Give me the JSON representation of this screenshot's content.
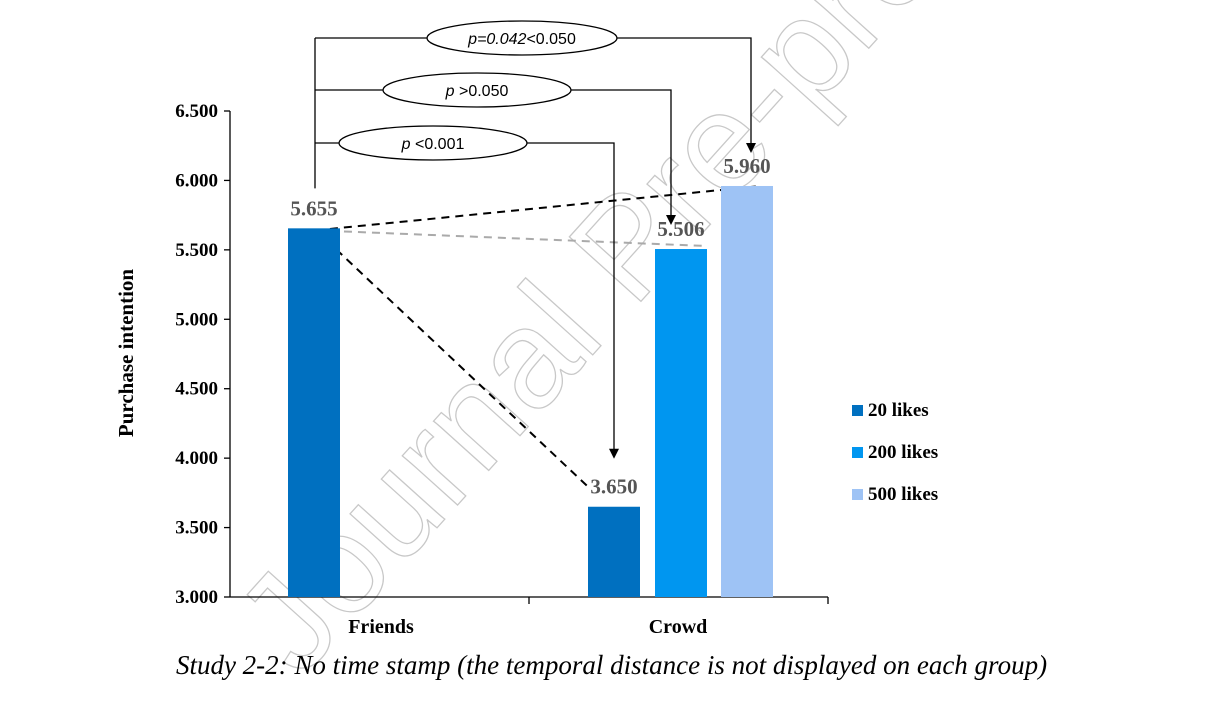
{
  "chart_data": {
    "type": "bar",
    "ylabel": "Purchase intention",
    "ylim": [
      3.0,
      6.5
    ],
    "yticks": [
      "3.000",
      "3.500",
      "4.000",
      "4.500",
      "5.000",
      "5.500",
      "6.000",
      "6.500"
    ],
    "groups": [
      "Friends",
      "Crowd"
    ],
    "bars": [
      {
        "group": "Friends",
        "series": "20 likes",
        "value": 5.655,
        "label": "5.655"
      },
      {
        "group": "Crowd",
        "series": "20 likes",
        "value": 3.65,
        "label": "3.650"
      },
      {
        "group": "Crowd",
        "series": "200 likes",
        "value": 5.506,
        "label": "5.506"
      },
      {
        "group": "Crowd",
        "series": "500 likes",
        "value": 5.96,
        "label": "5.960"
      }
    ],
    "series": [
      {
        "name": "20 likes",
        "color": "#0070c0"
      },
      {
        "name": "200 likes",
        "color": "#0096f0"
      },
      {
        "name": "500 likes",
        "color": "#9ec3f5"
      }
    ],
    "legend_position": "right",
    "annotations": [
      {
        "p_italic": "p",
        "rest": "=0.042<0.050",
        "italic_all_value": "=0.042",
        "tail": "<0.050",
        "to": "500 likes"
      },
      {
        "p_italic": "p",
        "rest": " >0.050",
        "to": "200 likes"
      },
      {
        "p_italic": "p",
        "rest": " <0.001",
        "to": "20 likes"
      }
    ]
  },
  "caption": "Study 2-2: No time stamp (the temporal distance is not displayed on each group)",
  "watermark": "Journal Pre-proof"
}
